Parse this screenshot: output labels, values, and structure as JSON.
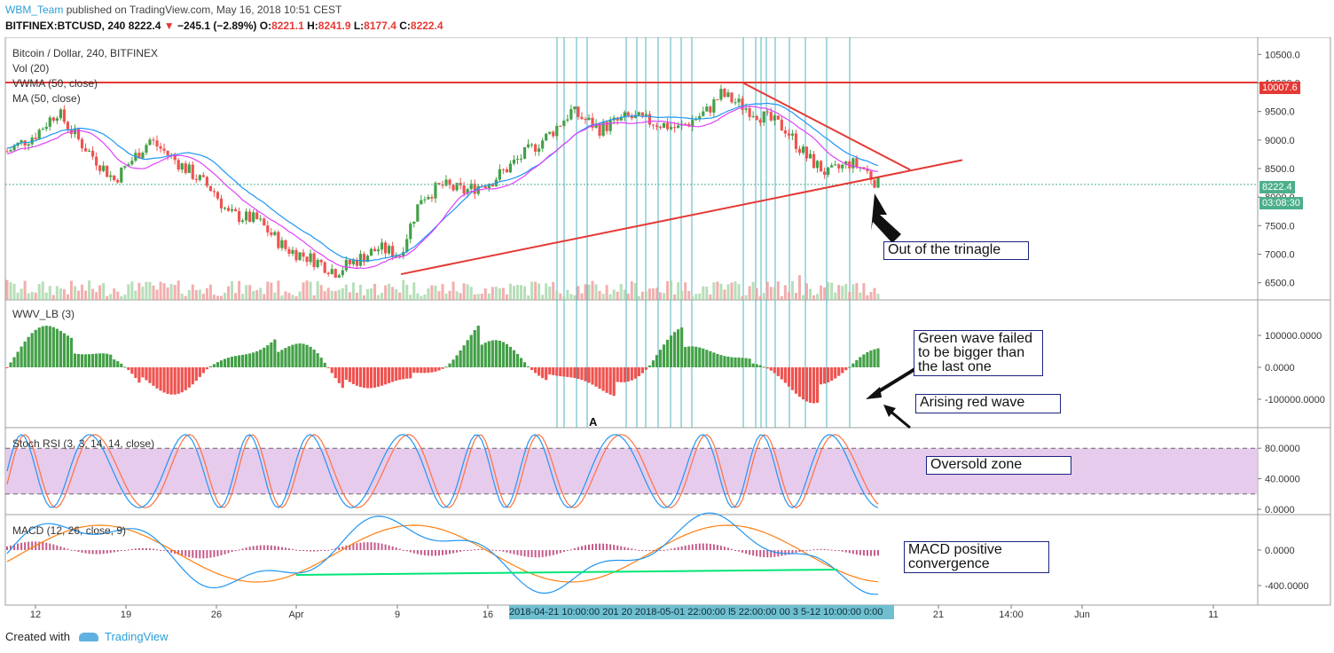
{
  "header": {
    "author": "WBM_Team",
    "published_text": "published on TradingView.com, May 16, 2018 10:51 CEST",
    "symbol_line": "BITFINEX:BTCUSD, 240",
    "last": "8222.4",
    "change": "−245.1 (−2.89%)",
    "open_label": "O:",
    "open": "8221.1",
    "high_label": "H:",
    "high": "8241.9",
    "low_label": "L:",
    "low": "8177.4",
    "close_label": "C:",
    "close": "8222.4"
  },
  "panes": {
    "main_labels": [
      "Bitcoin / Dollar, 240, BITFINEX",
      "Vol (20)",
      "VWMA (50, close)",
      "MA (50, close)"
    ],
    "wwv_label": "WWV_LB (3)",
    "stoch_label": "Stoch RSI (3, 3, 14, 14, close)",
    "macd_label": "MACD (12, 26, close, 9)"
  },
  "annotations": {
    "out_of_triangle": "Out of the trinagle",
    "green_wave": [
      "Green wave failed",
      "to be bigger than",
      "the last one"
    ],
    "red_wave": "Arising red wave",
    "oversold": "Oversold zone",
    "macd_conv": [
      "MACD positive",
      "convergence"
    ],
    "marker_a": "A"
  },
  "price_tags": {
    "resistance": "10007.6",
    "current": "8222.4",
    "countdown": "03:08:30"
  },
  "footer": {
    "created_with": "Created with",
    "brand": "TradingView"
  },
  "colors": {
    "up": "#43a047",
    "down": "#ef5350",
    "trend": "#e53935",
    "blue": "#2196f3",
    "magenta": "#e040fb",
    "stoch_zone": "#e1bee7",
    "macd_line": "#2196f3",
    "signal_line": "#ff7f0e",
    "green_line": "#00e676",
    "vline": "#4fb3bf"
  },
  "chart_data": [
    {
      "type": "candlestick",
      "title": "Bitcoin / Dollar, 240, BITFINEX",
      "ylim": [
        6200,
        10800
      ],
      "y_ticks": [
        "10500.0",
        "10000.0",
        "9500.0",
        "9000.0",
        "8500.0",
        "8000.0",
        "7500.0",
        "7000.0",
        "6500.0"
      ],
      "x_ticks": [
        "12",
        "19",
        "26",
        "Apr",
        "9",
        "16",
        "21",
        "14:00",
        "Jun",
        "11"
      ],
      "resistance_level": 10007.6,
      "last_price": 8222.4,
      "price_path": [
        [
          0,
          8800
        ],
        [
          8,
          9100
        ],
        [
          14,
          9500
        ],
        [
          20,
          9000
        ],
        [
          30,
          8300
        ],
        [
          40,
          9000
        ],
        [
          50,
          8500
        ],
        [
          58,
          8100
        ],
        [
          62,
          7700
        ],
        [
          70,
          7600
        ],
        [
          78,
          7100
        ],
        [
          86,
          6900
        ],
        [
          92,
          6700
        ],
        [
          98,
          6900
        ],
        [
          104,
          7100
        ],
        [
          110,
          7000
        ],
        [
          116,
          8000
        ],
        [
          122,
          8200
        ],
        [
          128,
          8100
        ],
        [
          136,
          8300
        ],
        [
          144,
          8700
        ],
        [
          152,
          9100
        ],
        [
          158,
          9500
        ],
        [
          166,
          9200
        ],
        [
          174,
          9400
        ],
        [
          182,
          9300
        ],
        [
          188,
          9200
        ],
        [
          196,
          9500
        ],
        [
          200,
          9800
        ],
        [
          206,
          9600
        ],
        [
          212,
          9400
        ],
        [
          218,
          9200
        ],
        [
          224,
          8700
        ],
        [
          230,
          8400
        ],
        [
          236,
          8600
        ],
        [
          240,
          8500
        ],
        [
          244,
          8222
        ]
      ]
    },
    {
      "type": "bar",
      "title": "WWV_LB (3)",
      "y_ticks": [
        "100000.0000",
        "0.0000",
        "-100000.0000"
      ]
    },
    {
      "type": "line",
      "title": "Stoch RSI (3, 3, 14, 14, close)",
      "y_ticks": [
        "80.0000",
        "40.0000",
        "0.0000"
      ],
      "zone": [
        20,
        80
      ]
    },
    {
      "type": "line",
      "title": "MACD (12, 26, close, 9)",
      "y_ticks": [
        "0.0000",
        "-400.0000"
      ]
    }
  ],
  "x_highlight": "2018-04-21 10:00:00  201 20 2018-05-01 22:00:00  l5 22:00:00  00 3 5-12 10:00:00 0:00"
}
